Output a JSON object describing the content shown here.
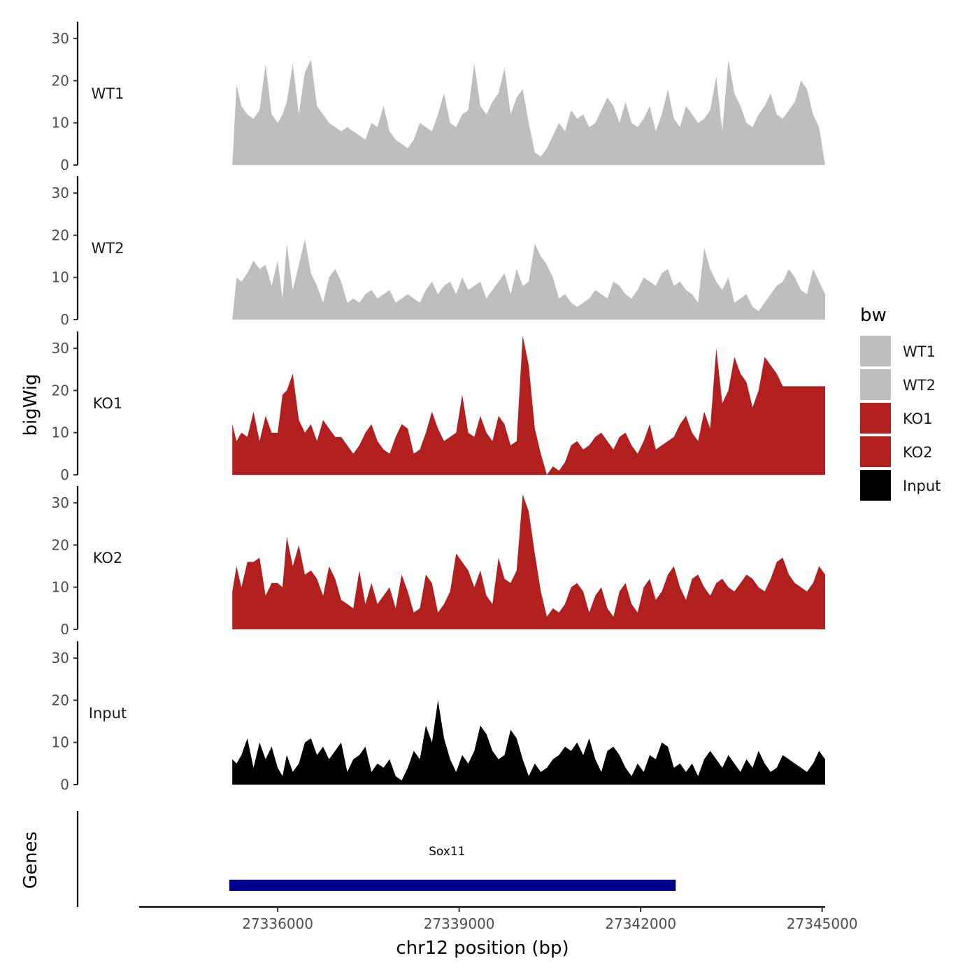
{
  "chart_data": {
    "type": "area",
    "ylabel": "bigWig",
    "xlabel": "chr12 position (bp)",
    "ylim": [
      0,
      34
    ],
    "xlim": [
      27333710,
      27345050
    ],
    "y_ticks": [
      0,
      10,
      20,
      30
    ],
    "x_ticks": [
      27336000,
      27339000,
      27342000,
      27345000
    ],
    "x_tick_labels": [
      "27336000",
      "27339000",
      "27342000",
      "27345000"
    ],
    "gene_track_label": "Genes",
    "legend": {
      "title": "bw",
      "entries": [
        {
          "name": "WT1",
          "color": "#bebebe"
        },
        {
          "name": "WT2",
          "color": "#bebebe"
        },
        {
          "name": "KO1",
          "color": "#b21f1f"
        },
        {
          "name": "KO2",
          "color": "#b21f1f"
        },
        {
          "name": "Input",
          "color": "#000000"
        }
      ]
    },
    "genes": [
      {
        "name": "Sox11",
        "start": 27335200,
        "end": 27342580,
        "color": "#00008b",
        "label_pos": 27338800
      }
    ],
    "tracks": [
      {
        "name": "WT1",
        "color": "#bebebe",
        "x": [
          27335250,
          27335320,
          27335400,
          27335500,
          27335600,
          27335700,
          27335800,
          27335900,
          27336000,
          27336080,
          27336150,
          27336250,
          27336350,
          27336450,
          27336550,
          27336650,
          27336750,
          27336850,
          27336950,
          27337050,
          27337150,
          27337250,
          27337350,
          27337450,
          27337550,
          27337650,
          27337750,
          27337850,
          27337950,
          27338050,
          27338150,
          27338250,
          27338350,
          27338450,
          27338550,
          27338650,
          27338750,
          27338850,
          27338950,
          27339050,
          27339150,
          27339250,
          27339350,
          27339450,
          27339550,
          27339650,
          27339750,
          27339850,
          27339950,
          27340050,
          27340150,
          27340250,
          27340350,
          27340450,
          27340550,
          27340650,
          27340750,
          27340850,
          27340950,
          27341050,
          27341150,
          27341250,
          27341350,
          27341450,
          27341550,
          27341650,
          27341750,
          27341850,
          27341950,
          27342050,
          27342150,
          27342250,
          27342350,
          27342450,
          27342550,
          27342650,
          27342750,
          27342850,
          27342950,
          27343050,
          27343150,
          27343250,
          27343350,
          27343450,
          27343550,
          27343650,
          27343750,
          27343850,
          27343950,
          27344050,
          27344150,
          27344250,
          27344350,
          27344450,
          27344550,
          27344650,
          27344750,
          27344850,
          27344950,
          27345050
        ],
        "values": [
          0,
          19,
          14,
          12,
          11,
          13,
          24,
          12,
          10,
          12,
          15,
          24,
          12,
          22,
          25,
          14,
          12,
          10,
          9,
          8,
          9,
          8,
          7,
          6,
          10,
          9,
          14,
          8,
          6,
          5,
          4,
          6,
          10,
          9,
          8,
          12,
          17,
          10,
          9,
          12,
          13,
          24,
          14,
          12,
          15,
          17,
          23,
          12,
          16,
          18,
          10,
          3,
          2,
          4,
          7,
          10,
          8,
          13,
          11,
          12,
          9,
          10,
          13,
          16,
          14,
          10,
          15,
          10,
          9,
          11,
          14,
          8,
          12,
          18,
          11,
          9,
          14,
          12,
          10,
          11,
          13,
          21,
          8,
          25,
          17,
          14,
          10,
          9,
          12,
          14,
          17,
          12,
          11,
          13,
          15,
          20,
          18,
          12,
          9,
          0
        ]
      },
      {
        "name": "WT2",
        "color": "#bebebe",
        "x": [
          27335250,
          27335320,
          27335400,
          27335500,
          27335600,
          27335700,
          27335800,
          27335900,
          27336000,
          27336080,
          27336150,
          27336250,
          27336350,
          27336450,
          27336550,
          27336650,
          27336750,
          27336850,
          27336950,
          27337050,
          27337150,
          27337250,
          27337350,
          27337450,
          27337550,
          27337650,
          27337750,
          27337850,
          27337950,
          27338050,
          27338150,
          27338250,
          27338350,
          27338450,
          27338550,
          27338650,
          27338750,
          27338850,
          27338950,
          27339050,
          27339150,
          27339250,
          27339350,
          27339450,
          27339550,
          27339650,
          27339750,
          27339850,
          27339950,
          27340050,
          27340150,
          27340250,
          27340350,
          27340450,
          27340550,
          27340650,
          27340750,
          27340850,
          27340950,
          27341050,
          27341150,
          27341250,
          27341350,
          27341450,
          27341550,
          27341650,
          27341750,
          27341850,
          27341950,
          27342050,
          27342150,
          27342250,
          27342350,
          27342450,
          27342550,
          27342650,
          27342750,
          27342850,
          27342950,
          27343050,
          27343150,
          27343250,
          27343350,
          27343450,
          27343550,
          27343650,
          27343750,
          27343850,
          27343950,
          27344050,
          27344150,
          27344250,
          27344350,
          27344450,
          27344550,
          27344650,
          27344750,
          27344850,
          27344950,
          27345050
        ],
        "values": [
          0,
          10,
          9,
          11,
          14,
          12,
          13,
          8,
          14,
          5,
          18,
          7,
          13,
          19,
          11,
          8,
          4,
          10,
          12,
          9,
          4,
          5,
          4,
          6,
          7,
          5,
          6,
          7,
          4,
          5,
          6,
          5,
          4,
          7,
          9,
          6,
          8,
          9,
          6,
          10,
          7,
          8,
          9,
          5,
          7,
          9,
          11,
          6,
          12,
          8,
          9,
          18,
          15,
          13,
          10,
          5,
          6,
          4,
          3,
          4,
          5,
          7,
          6,
          5,
          9,
          8,
          6,
          5,
          7,
          10,
          9,
          8,
          11,
          12,
          8,
          9,
          7,
          6,
          4,
          17,
          12,
          9,
          7,
          10,
          4,
          5,
          6,
          3,
          2,
          4,
          6,
          8,
          9,
          12,
          10,
          7,
          6,
          12,
          9,
          6
        ]
      },
      {
        "name": "KO1",
        "color": "#b21f1f",
        "x": [
          27335250,
          27335320,
          27335400,
          27335500,
          27335600,
          27335700,
          27335800,
          27335900,
          27336000,
          27336080,
          27336150,
          27336250,
          27336350,
          27336450,
          27336550,
          27336650,
          27336750,
          27336850,
          27336950,
          27337050,
          27337150,
          27337250,
          27337350,
          27337450,
          27337550,
          27337650,
          27337750,
          27337850,
          27337950,
          27338050,
          27338150,
          27338250,
          27338350,
          27338450,
          27338550,
          27338650,
          27338750,
          27338850,
          27338950,
          27339050,
          27339150,
          27339250,
          27339350,
          27339450,
          27339550,
          27339650,
          27339750,
          27339850,
          27339950,
          27340050,
          27340150,
          27340250,
          27340350,
          27340450,
          27340550,
          27340650,
          27340750,
          27340850,
          27340950,
          27341050,
          27341150,
          27341250,
          27341350,
          27341450,
          27341550,
          27341650,
          27341750,
          27341850,
          27341950,
          27342050,
          27342150,
          27342250,
          27342350,
          27342450,
          27342550,
          27342650,
          27342750,
          27342850,
          27342950,
          27343050,
          27343150,
          27343250,
          27343350,
          27343450,
          27343550,
          27343650,
          27343750,
          27343850,
          27343950,
          27344050,
          27344150,
          27344250,
          27344350,
          27344450,
          27344550,
          27344650,
          27344750,
          27344850,
          27344950,
          27345050
        ],
        "values": [
          12,
          8,
          10,
          9,
          15,
          8,
          14,
          10,
          10,
          19,
          20,
          24,
          13,
          10,
          12,
          8,
          13,
          11,
          9,
          9,
          7,
          5,
          7,
          10,
          12,
          8,
          6,
          5,
          9,
          12,
          11,
          5,
          6,
          10,
          15,
          11,
          8,
          9,
          10,
          19,
          10,
          9,
          14,
          10,
          8,
          14,
          12,
          7,
          8,
          33,
          26,
          11,
          5,
          0,
          2,
          1,
          3,
          7,
          8,
          6,
          7,
          9,
          10,
          8,
          6,
          9,
          10,
          7,
          5,
          8,
          12,
          6,
          7,
          8,
          9,
          12,
          14,
          10,
          8,
          15,
          11,
          30,
          17,
          20,
          28,
          24,
          22,
          16,
          20,
          28,
          26,
          24,
          21,
          21,
          21,
          21,
          21,
          21,
          21,
          21
        ]
      },
      {
        "name": "KO2",
        "color": "#b21f1f",
        "x": [
          27335250,
          27335320,
          27335400,
          27335500,
          27335600,
          27335700,
          27335800,
          27335900,
          27336000,
          27336080,
          27336150,
          27336250,
          27336350,
          27336450,
          27336550,
          27336650,
          27336750,
          27336850,
          27336950,
          27337050,
          27337150,
          27337250,
          27337350,
          27337450,
          27337550,
          27337650,
          27337750,
          27337850,
          27337950,
          27338050,
          27338150,
          27338250,
          27338350,
          27338450,
          27338550,
          27338650,
          27338750,
          27338850,
          27338950,
          27339050,
          27339150,
          27339250,
          27339350,
          27339450,
          27339550,
          27339650,
          27339750,
          27339850,
          27339950,
          27340050,
          27340150,
          27340250,
          27340350,
          27340450,
          27340550,
          27340650,
          27340750,
          27340850,
          27340950,
          27341050,
          27341150,
          27341250,
          27341350,
          27341450,
          27341550,
          27341650,
          27341750,
          27341850,
          27341950,
          27342050,
          27342150,
          27342250,
          27342350,
          27342450,
          27342550,
          27342650,
          27342750,
          27342850,
          27342950,
          27343050,
          27343150,
          27343250,
          27343350,
          27343450,
          27343550,
          27343650,
          27343750,
          27343850,
          27343950,
          27344050,
          27344150,
          27344250,
          27344350,
          27344450,
          27344550,
          27344650,
          27344750,
          27344850,
          27344950,
          27345050
        ],
        "values": [
          9,
          15,
          10,
          16,
          16,
          17,
          8,
          11,
          11,
          10,
          22,
          15,
          20,
          13,
          14,
          12,
          8,
          15,
          12,
          7,
          6,
          5,
          14,
          6,
          11,
          6,
          8,
          10,
          5,
          13,
          9,
          4,
          5,
          13,
          11,
          4,
          6,
          9,
          18,
          16,
          14,
          10,
          14,
          8,
          6,
          17,
          12,
          11,
          14,
          32,
          28,
          18,
          9,
          3,
          5,
          4,
          6,
          10,
          11,
          9,
          4,
          8,
          10,
          5,
          3,
          9,
          11,
          6,
          4,
          10,
          12,
          7,
          9,
          13,
          15,
          10,
          7,
          12,
          13,
          10,
          8,
          11,
          12,
          10,
          9,
          11,
          13,
          12,
          10,
          9,
          12,
          16,
          17,
          13,
          11,
          10,
          9,
          11,
          15,
          13
        ]
      },
      {
        "name": "Input",
        "color": "#000000",
        "x": [
          27335250,
          27335320,
          27335400,
          27335500,
          27335600,
          27335700,
          27335800,
          27335900,
          27336000,
          27336080,
          27336150,
          27336250,
          27336350,
          27336450,
          27336550,
          27336650,
          27336750,
          27336850,
          27336950,
          27337050,
          27337150,
          27337250,
          27337350,
          27337450,
          27337550,
          27337650,
          27337750,
          27337850,
          27337950,
          27338050,
          27338150,
          27338250,
          27338350,
          27338450,
          27338550,
          27338650,
          27338750,
          27338850,
          27338950,
          27339050,
          27339150,
          27339250,
          27339350,
          27339450,
          27339550,
          27339650,
          27339750,
          27339850,
          27339950,
          27340050,
          27340150,
          27340250,
          27340350,
          27340450,
          27340550,
          27340650,
          27340750,
          27340850,
          27340950,
          27341050,
          27341150,
          27341250,
          27341350,
          27341450,
          27341550,
          27341650,
          27341750,
          27341850,
          27341950,
          27342050,
          27342150,
          27342250,
          27342350,
          27342450,
          27342550,
          27342650,
          27342750,
          27342850,
          27342950,
          27343050,
          27343150,
          27343250,
          27343350,
          27343450,
          27343550,
          27343650,
          27343750,
          27343850,
          27343950,
          27344050,
          27344150,
          27344250,
          27344350,
          27344450,
          27344550,
          27344650,
          27344750,
          27344850,
          27344950,
          27345050
        ],
        "values": [
          6,
          5,
          7,
          11,
          4,
          10,
          6,
          9,
          4,
          2,
          7,
          3,
          5,
          10,
          11,
          7,
          9,
          6,
          8,
          10,
          3,
          6,
          7,
          9,
          3,
          5,
          4,
          6,
          2,
          1,
          4,
          8,
          6,
          14,
          10,
          20,
          11,
          6,
          3,
          7,
          5,
          8,
          14,
          12,
          8,
          6,
          7,
          13,
          11,
          6,
          2,
          5,
          3,
          4,
          6,
          7,
          9,
          8,
          10,
          7,
          11,
          6,
          3,
          8,
          9,
          7,
          4,
          2,
          5,
          3,
          7,
          6,
          10,
          9,
          4,
          5,
          3,
          5,
          2,
          6,
          8,
          6,
          4,
          7,
          5,
          3,
          6,
          4,
          8,
          5,
          3,
          4,
          7,
          6,
          5,
          4,
          3,
          5,
          8,
          6
        ]
      }
    ]
  }
}
